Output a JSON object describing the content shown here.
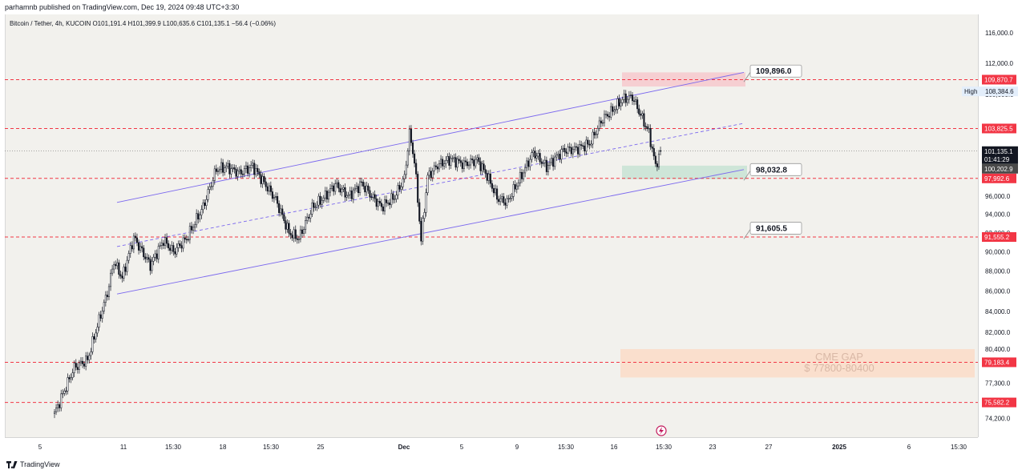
{
  "header": {
    "published": "parhamnb published on TradingView.com, Dec 19, 2024 09:48 UTC+3:30",
    "legend": "Bitcoin / Tether, 4h, KUCOIN  O101,191.4  H101,399.9  L100,635.6  C101,135.1  −56.4 (−0.06%)"
  },
  "footer": {
    "brand": "TradingView"
  },
  "colors": {
    "background": "#f2f1ed",
    "channel": "#7b68ee",
    "level_line": "#f23645",
    "candle_bull": "#ffffff",
    "candle_bear": "#131722",
    "sell_zone": "#f7c9cc",
    "buy_zone": "#c8e3d4",
    "cme_gap": "#fbdcc7"
  },
  "icons": {
    "replay": "lightning-icon",
    "brand": "tradingview-logo-icon"
  },
  "chart_data": {
    "type": "candlestick",
    "symbol": "Bitcoin / Tether",
    "interval": "4h",
    "exchange": "KUCOIN",
    "ohlc_last": {
      "open": 101191.4,
      "high": 101399.9,
      "low": 100635.6,
      "close": 101135.1,
      "change": -56.4,
      "change_pct": -0.06
    },
    "x_ticks": [
      "5",
      "11",
      "15:30",
      "18",
      "15:30",
      "25",
      "Dec",
      "5",
      "9",
      "15:30",
      "16",
      "15:30",
      "23",
      "27",
      "2025",
      "6",
      "15:30"
    ],
    "y_scale": "log",
    "y_ticks": [
      116000,
      112000,
      108000,
      104000,
      100000,
      96000,
      94000,
      92000,
      90000,
      88000,
      86000,
      84000,
      82000,
      80400,
      77300,
      74200
    ],
    "y_tick_labels": [
      "116,000.0",
      "112,000.0",
      "108,000.0",
      "104,000.0",
      "100,000.0",
      "96,000.0",
      "94,000.0",
      "92,000.0",
      "90,000.0",
      "88,000.0",
      "86,000.0",
      "84,000.0",
      "82,000.0",
      "80,400.0",
      "77,300.0",
      "74,200.0"
    ],
    "ylim": [
      72600,
      118500
    ],
    "horizontal_levels": [
      {
        "value": 109870.7,
        "label": "109,870.7"
      },
      {
        "value": 103825.5,
        "label": "103,825.5"
      },
      {
        "value": 97992.6,
        "label": "97,992.6"
      },
      {
        "value": 91555.2,
        "label": "91,555.2"
      },
      {
        "value": 79183.4,
        "label": "79,183.4"
      },
      {
        "value": 75582.2,
        "label": "75,582.2"
      }
    ],
    "high_marker": {
      "label": "High",
      "value": 108384.6,
      "text": "108,384.6"
    },
    "last_price": {
      "value": 101135.1,
      "text": "101,135.1",
      "countdown": "01:41:29"
    },
    "bid_price": {
      "value": 100202.9,
      "text": "100,202.9"
    },
    "callouts": [
      {
        "label": "109,896.0",
        "value": 109896.0
      },
      {
        "label": "98,032.8",
        "value": 98032.8
      },
      {
        "label": "91,605.5",
        "value": 91605.5
      }
    ],
    "annotations": {
      "gap_title": "CME GAP",
      "gap_range": "$ 77800-80400"
    },
    "zones": [
      {
        "name": "sell",
        "from": 109000,
        "to": 110800
      },
      {
        "name": "buy",
        "from": 97900,
        "to": 99450
      },
      {
        "name": "cme-gap",
        "from": 77800,
        "to": 80400
      }
    ],
    "channel": {
      "upper": {
        "start": 95300,
        "end": 110800
      },
      "middle": {
        "start": 90550,
        "end": 104450
      },
      "lower": {
        "start": 85700,
        "end": 99000
      }
    },
    "candle_path": [
      [
        74600,
        0
      ],
      [
        78700,
        12
      ],
      [
        79400,
        20
      ],
      [
        85800,
        32
      ],
      [
        89000,
        36
      ],
      [
        87300,
        41
      ],
      [
        91500,
        48
      ],
      [
        88600,
        58
      ],
      [
        91200,
        66
      ],
      [
        90000,
        72
      ],
      [
        91400,
        80
      ],
      [
        94800,
        90
      ],
      [
        99000,
        98
      ],
      [
        99300,
        104
      ],
      [
        98600,
        112
      ],
      [
        99400,
        120
      ],
      [
        97200,
        128
      ],
      [
        95600,
        134
      ],
      [
        92000,
        142
      ],
      [
        91400,
        148
      ],
      [
        94700,
        156
      ],
      [
        95800,
        163
      ],
      [
        97300,
        170
      ],
      [
        96000,
        178
      ],
      [
        97400,
        186
      ],
      [
        96000,
        192
      ],
      [
        94800,
        198
      ],
      [
        95900,
        206
      ],
      [
        98100,
        212
      ],
      [
        103200,
        215
      ],
      [
        100000,
        218
      ],
      [
        91200,
        222
      ],
      [
        98200,
        226
      ],
      [
        99500,
        232
      ],
      [
        100200,
        240
      ],
      [
        99600,
        248
      ],
      [
        100100,
        256
      ],
      [
        98300,
        262
      ],
      [
        95800,
        268
      ],
      [
        95300,
        274
      ],
      [
        98000,
        282
      ],
      [
        101000,
        290
      ],
      [
        99300,
        298
      ],
      [
        101200,
        308
      ],
      [
        101400,
        316
      ],
      [
        102000,
        324
      ],
      [
        105000,
        332
      ],
      [
        106000,
        338
      ],
      [
        107400,
        344
      ],
      [
        107700,
        350
      ],
      [
        105000,
        356
      ],
      [
        103300,
        360
      ],
      [
        99400,
        364
      ],
      [
        101100,
        367
      ]
    ]
  }
}
